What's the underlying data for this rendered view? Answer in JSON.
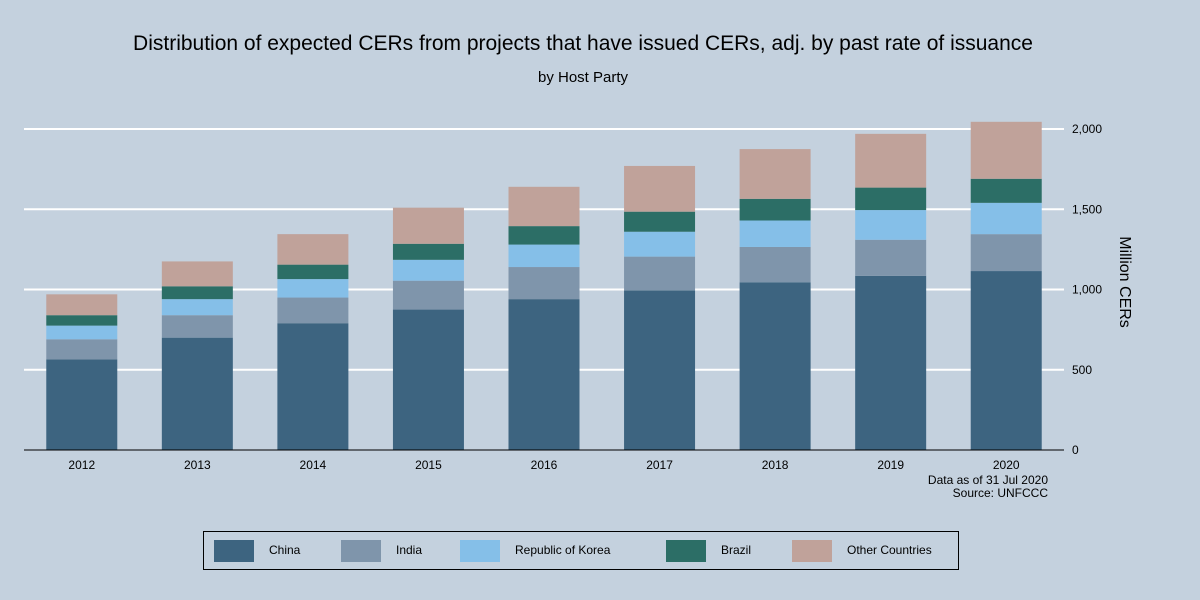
{
  "chart_data": {
    "type": "bar",
    "stacked": true,
    "title": "Distribution of expected CERs from projects that have issued CERs, adj. by past rate of issuance",
    "subtitle": "by Host Party",
    "ylabel": "Million CERs",
    "ylim": [
      0,
      2050
    ],
    "yticks": [
      0,
      500,
      1000,
      1500,
      2000
    ],
    "ytick_labels": [
      "0",
      "500",
      "1,000",
      "1,500",
      "2,000"
    ],
    "y_axis_side": "right",
    "grid": true,
    "categories": [
      "2012",
      "2013",
      "2014",
      "2015",
      "2016",
      "2017",
      "2018",
      "2019",
      "2020"
    ],
    "series": [
      {
        "name": "China",
        "color": "#3d6480",
        "values": [
          565,
          700,
          790,
          875,
          940,
          995,
          1045,
          1085,
          1115
        ]
      },
      {
        "name": "India",
        "color": "#7f95ab",
        "values": [
          125,
          140,
          160,
          180,
          200,
          210,
          220,
          225,
          230
        ]
      },
      {
        "name": "Republic of Korea",
        "color": "#85bfe8",
        "values": [
          85,
          100,
          115,
          130,
          140,
          155,
          165,
          185,
          195
        ]
      },
      {
        "name": "Brazil",
        "color": "#2c6e66",
        "values": [
          65,
          80,
          90,
          100,
          115,
          125,
          135,
          140,
          150
        ]
      },
      {
        "name": "Other Countries",
        "color": "#c0a29a",
        "values": [
          130,
          155,
          190,
          225,
          245,
          285,
          310,
          335,
          355
        ]
      }
    ],
    "notes": [
      "Data as of 31 Jul 2020",
      "Source: UNFCCC"
    ],
    "legend_position": "bottom"
  }
}
